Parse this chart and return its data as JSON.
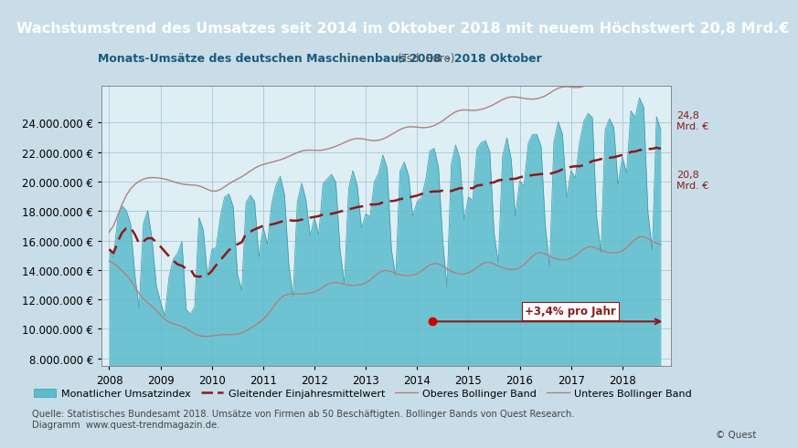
{
  "title": "Wachstumstrend des Umsatzes seit 2014 im Oktober 2018 mit neuem Höchstwert 20,8 Mrd.€",
  "subtitle": "Monats-Umsätze des deutschen Maschinenbaus 2008 - 2018 Oktober",
  "subtitle_unit": "(Tsd. Euro)",
  "title_bg": "#1a7a8a",
  "chart_bg": "#deeef5",
  "bar_color": "#5bbccc",
  "bar_color_fill": "#7ecfdc",
  "bb_color": "#b08080",
  "ma_color": "#8b1a1a",
  "trend_color": "#8b1a1a",
  "trend_label": "+3,4% pro Jahr",
  "trend_label_color": "#8b1a1a",
  "trend_label_bg": "#ffffff",
  "annotation_high": "24,8\nMrd. €",
  "annotation_low": "20,8\nMrd. €",
  "ylim": [
    7500000,
    26500000
  ],
  "yticks": [
    8000000,
    10000000,
    12000000,
    14000000,
    16000000,
    18000000,
    20000000,
    22000000,
    24000000
  ],
  "legend_items": [
    "Monatlicher Umsatzindex",
    "Gleitender Einjahresmittelwert",
    "Oberes Bollinger Band",
    "Unteres Bollinger Band"
  ],
  "source_text": "Quelle: Statistisches Bundesamt 2018. Umsätze von Firmen ab 50 Beschäftigten. Bollinger Bands von Quest Research.\nDiagramm  www.quest-trendmagazin.de.",
  "copyright": "© Quest",
  "outer_bg": "#c8dde8",
  "grid_color": "#b0ccd8"
}
